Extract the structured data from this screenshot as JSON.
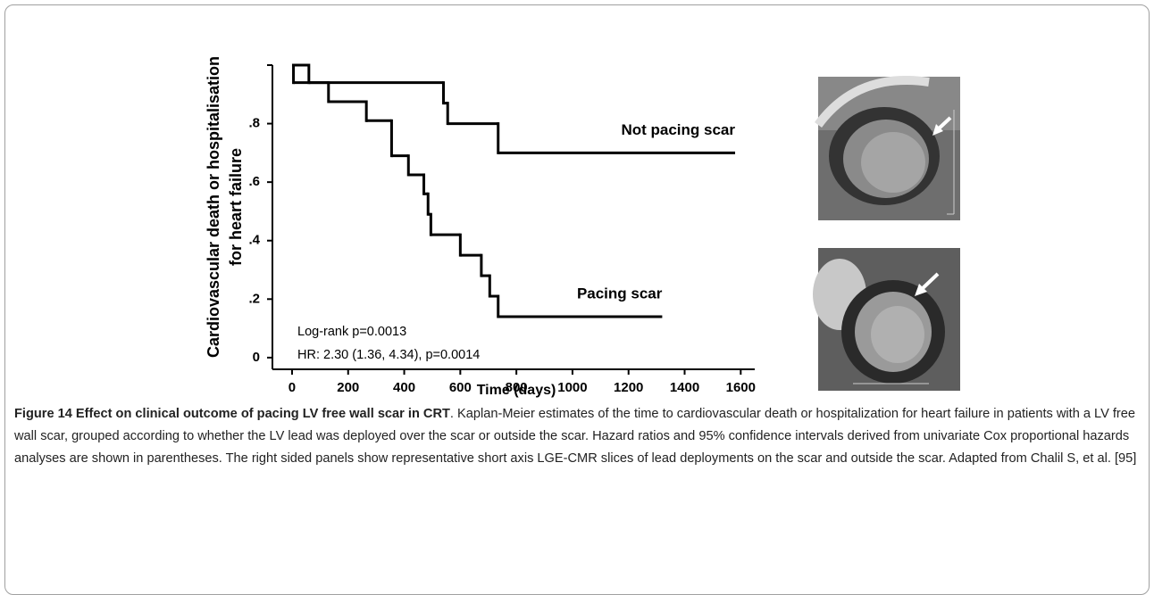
{
  "chart_data": {
    "type": "step",
    "ylabel": [
      "Cardiovascular death or hospitalisation",
      "for heart failure"
    ],
    "xlabel": "Time (days)",
    "xlim": [
      -70,
      1650
    ],
    "ylim": [
      -0.04,
      1.0
    ],
    "xticks": [
      0,
      200,
      400,
      600,
      800,
      1000,
      1200,
      1400,
      1600
    ],
    "yticks": [
      0,
      {
        "value": 0.2,
        "label": ".2"
      },
      {
        "value": 0.4,
        "label": ".4"
      },
      {
        "value": 0.6,
        "label": ".6"
      },
      {
        "value": 0.8,
        "label": ".8"
      }
    ],
    "color": "#000000",
    "series": [
      {
        "name": "Not pacing scar",
        "x": [
          0,
          60,
          540,
          555,
          735,
          1580
        ],
        "values": [
          1.0,
          0.94,
          0.87,
          0.8,
          0.7,
          0.7
        ]
      },
      {
        "name": "Pacing scar",
        "x": [
          0,
          5,
          130,
          265,
          355,
          415,
          470,
          485,
          495,
          600,
          675,
          705,
          735,
          1320
        ],
        "values": [
          1.0,
          0.94,
          0.875,
          0.81,
          0.69,
          0.625,
          0.56,
          0.49,
          0.42,
          0.35,
          0.28,
          0.21,
          0.14,
          0.14
        ]
      }
    ],
    "annotations": [
      "Log-rank p=0.0013",
      "HR: 2.30 (1.36, 4.34), p=0.0014"
    ]
  },
  "caption": {
    "title": "Figure 14 Effect on clinical outcome of pacing LV free wall scar in CRT",
    "text": ". Kaplan-Meier estimates of the time to cardiovascular death or hospitalization for heart failure in patients with a LV free wall scar, grouped according to whether the LV lead was deployed over the scar or outside the scar. Hazard ratios and 95% confidence intervals derived from univariate Cox proportional hazards analyses are shown in parentheses. The right sided panels show representative short axis LGE-CMR slices of lead deployments on the scar and outside the scar. Adapted from Chalil S, et al. [95]"
  }
}
